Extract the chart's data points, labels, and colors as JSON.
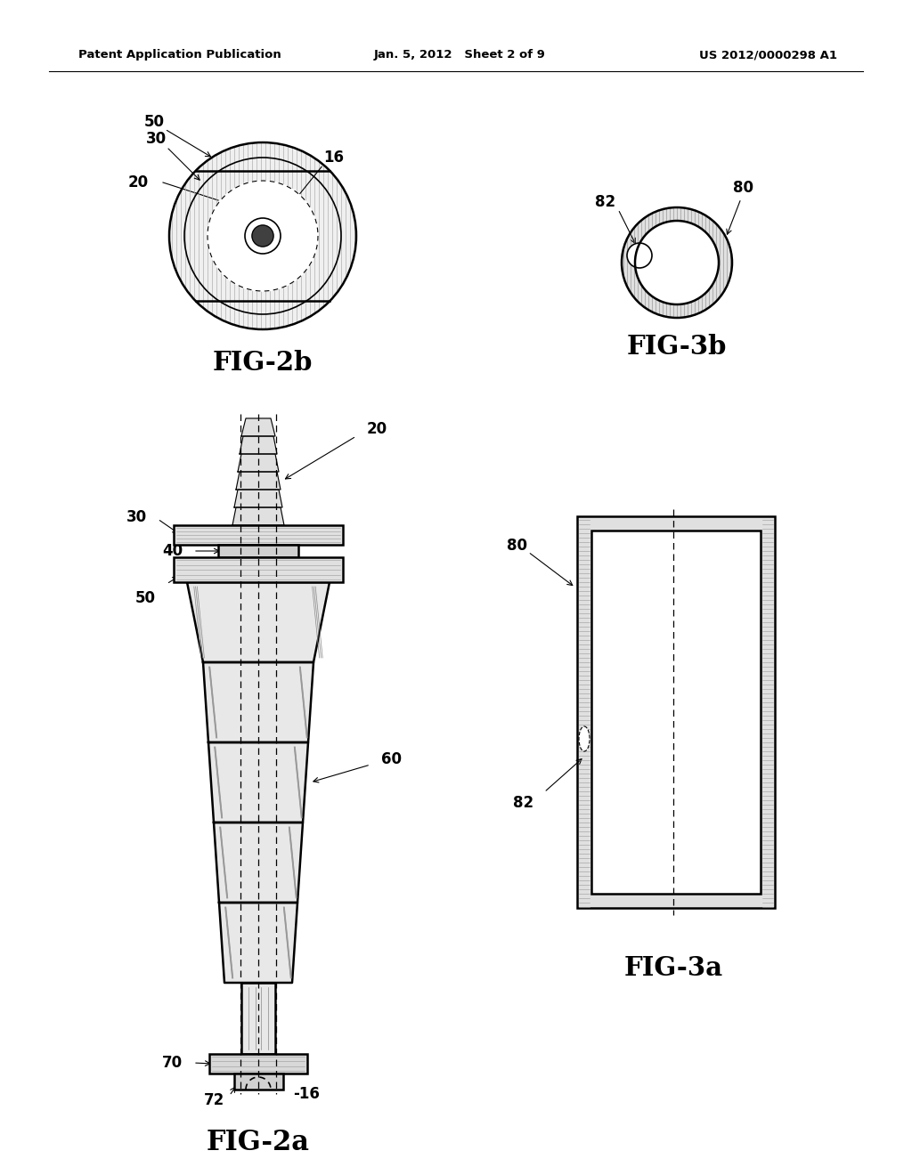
{
  "title_left": "Patent Application Publication",
  "title_center": "Jan. 5, 2012   Sheet 2 of 9",
  "title_right": "US 2012/0000298 A1",
  "fig2b_label": "FIG-2b",
  "fig2a_label": "FIG-2a",
  "fig3a_label": "FIG-3a",
  "fig3b_label": "FIG-3b",
  "bg_color": "#ffffff",
  "line_color": "#000000",
  "hatch_gray": "#bbbbbb",
  "fill_gray": "#e8e8e8",
  "fill_mid": "#d8d8d8",
  "fill_dark": "#c0c0c0"
}
